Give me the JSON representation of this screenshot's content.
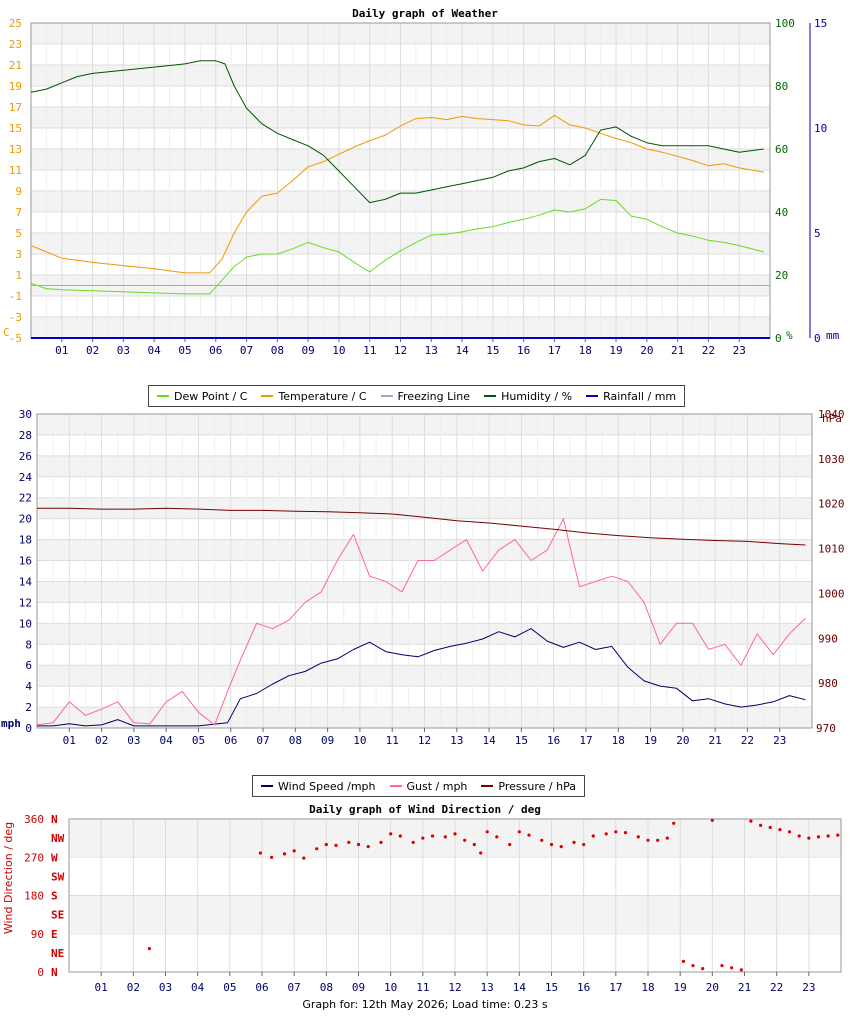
{
  "footer": "Graph for: 12th May 2026; Load time: 0.23 s",
  "legend_weather": [
    {
      "label": "Dew Point / C",
      "color": "#66dd22"
    },
    {
      "label": "Temperature / C",
      "color": "#ee9900"
    },
    {
      "label": "Freezing Line",
      "color": "#99aacc"
    },
    {
      "label": "Humidity / %",
      "color": "#005500"
    },
    {
      "label": "Rainfall / mm",
      "color": "#0000cc"
    }
  ],
  "legend_wind": [
    {
      "label": "Wind Speed /mph",
      "color": "#000066"
    },
    {
      "label": "Gust / mph",
      "color": "#ff6699"
    },
    {
      "label": "Pressure / hPa",
      "color": "#770000"
    }
  ],
  "chart_data": [
    {
      "type": "line",
      "title": "Daily graph of Weather",
      "x_ticks": [
        "01",
        "02",
        "03",
        "04",
        "05",
        "06",
        "07",
        "08",
        "09",
        "10",
        "11",
        "12",
        "13",
        "14",
        "15",
        "16",
        "17",
        "18",
        "19",
        "20",
        "21",
        "22",
        "23"
      ],
      "xlim": [
        0,
        24
      ],
      "grid": true,
      "legend_position": "bottom",
      "y_left": {
        "unit": "C",
        "ylim": [
          -5,
          25
        ],
        "ticks": [
          "-5",
          "-3",
          "-1",
          "1",
          "3",
          "5",
          "7",
          "9",
          "11",
          "13",
          "15",
          "17",
          "19",
          "21",
          "23",
          "25"
        ],
        "color": "#ee9900"
      },
      "y_right1": {
        "unit": "%",
        "ylim": [
          0,
          100
        ],
        "ticks": [
          "0",
          "20",
          "40",
          "60",
          "80",
          "100"
        ],
        "color": "#006600"
      },
      "y_right2": {
        "unit": "mm",
        "ylim": [
          0,
          15
        ],
        "ticks": [
          "0",
          "5",
          "10",
          "15"
        ],
        "color": "#0000aa"
      },
      "series": [
        {
          "name": "Temperature / C",
          "axis": "left",
          "color": "#ee9900",
          "x": [
            0,
            0.5,
            1,
            2,
            3,
            4,
            5,
            5.8,
            6.2,
            6.6,
            7,
            7.5,
            8,
            8.5,
            9,
            9.5,
            10,
            10.5,
            11,
            11.5,
            12,
            12.5,
            13,
            13.5,
            14,
            14.5,
            15,
            15.5,
            16,
            16.5,
            17,
            17.5,
            18,
            18.5,
            19,
            19.5,
            20,
            20.5,
            21,
            21.5,
            22,
            22.5,
            23,
            23.8
          ],
          "y": [
            3.8,
            3.2,
            2.6,
            2.2,
            1.9,
            1.6,
            1.2,
            1.2,
            2.5,
            5,
            7,
            8.5,
            8.8,
            10,
            11.3,
            11.8,
            12.5,
            13.2,
            13.8,
            14.3,
            15.2,
            15.9,
            16,
            15.8,
            16.1,
            15.9,
            15.8,
            15.7,
            15.3,
            15.2,
            16.2,
            15.3,
            15,
            14.5,
            14,
            13.6,
            13,
            12.7,
            12.3,
            11.9,
            11.4,
            11.6,
            11.2,
            10.8
          ]
        },
        {
          "name": "Dew Point / C",
          "axis": "left",
          "color": "#66dd22",
          "x": [
            0,
            0.5,
            1,
            2,
            3,
            4,
            5,
            5.8,
            6.2,
            6.6,
            7,
            7.5,
            8,
            8.5,
            9,
            9.5,
            10,
            10.5,
            11,
            11.5,
            12,
            12.5,
            13,
            13.5,
            14,
            14.5,
            15,
            15.5,
            16,
            16.5,
            17,
            17.5,
            18,
            18.5,
            19,
            19.5,
            20,
            20.5,
            21,
            21.5,
            22,
            22.5,
            23,
            23.8
          ],
          "y": [
            0.2,
            -0.3,
            -0.4,
            -0.5,
            -0.6,
            -0.7,
            -0.8,
            -0.8,
            0.5,
            1.8,
            2.7,
            3,
            3,
            3.5,
            4.1,
            3.6,
            3.2,
            2.2,
            1.3,
            2.4,
            3.3,
            4.1,
            4.8,
            4.9,
            5.1,
            5.4,
            5.6,
            6,
            6.3,
            6.7,
            7.2,
            7,
            7.3,
            8.2,
            8.1,
            6.6,
            6.3,
            5.6,
            5,
            4.7,
            4.3,
            4.1,
            3.8,
            3.2
          ]
        },
        {
          "name": "Humidity / %",
          "axis": "right1",
          "color": "#005500",
          "x": [
            0,
            0.5,
            1,
            1.5,
            2,
            3,
            4,
            5,
            5.5,
            6,
            6.3,
            6.6,
            7,
            7.5,
            8,
            8.5,
            9,
            9.5,
            10,
            10.5,
            11,
            11.5,
            12,
            12.5,
            13,
            13.5,
            14,
            14.5,
            15,
            15.5,
            16,
            16.5,
            17,
            17.5,
            18,
            18.5,
            19,
            19.5,
            20,
            20.5,
            21,
            21.5,
            22,
            22.5,
            23,
            23.8
          ],
          "y": [
            78,
            79,
            81,
            83,
            84,
            85,
            86,
            87,
            88,
            88,
            87,
            80,
            73,
            68,
            65,
            63,
            61,
            58,
            53,
            48,
            43,
            44,
            46,
            46,
            47,
            48,
            49,
            50,
            51,
            53,
            54,
            56,
            57,
            55,
            58,
            66,
            67,
            64,
            62,
            61,
            61,
            61,
            61,
            60,
            59,
            60
          ]
        },
        {
          "name": "Rainfall / mm",
          "axis": "right2",
          "color": "#0000cc",
          "x": [
            0,
            24
          ],
          "y": [
            0,
            0
          ]
        },
        {
          "name": "Freezing Line",
          "axis": "left",
          "color": "#99aacc",
          "x": [
            0,
            24
          ],
          "y": [
            0,
            0
          ]
        }
      ]
    },
    {
      "type": "line",
      "title": "",
      "x_ticks": [
        "01",
        "02",
        "03",
        "04",
        "05",
        "06",
        "07",
        "08",
        "09",
        "10",
        "11",
        "12",
        "13",
        "14",
        "15",
        "16",
        "17",
        "18",
        "19",
        "20",
        "21",
        "22",
        "23"
      ],
      "xlim": [
        0,
        24
      ],
      "grid": true,
      "legend_position": "bottom",
      "y_left": {
        "unit": "mph",
        "ylim": [
          0,
          30
        ],
        "ticks": [
          "0",
          "2",
          "4",
          "6",
          "8",
          "10",
          "12",
          "14",
          "16",
          "18",
          "20",
          "22",
          "24",
          "26",
          "28",
          "30"
        ],
        "color": "#000066"
      },
      "y_right": {
        "unit": "hPa",
        "ylim": [
          970,
          1040
        ],
        "ticks": [
          "970",
          "980",
          "990",
          "1000",
          "1010",
          "1020",
          "1030",
          "1040"
        ],
        "color": "#660000"
      },
      "series": [
        {
          "name": "Wind Speed /mph",
          "axis": "left",
          "color": "#000066",
          "x": [
            0,
            0.5,
            1,
            1.5,
            2,
            2.5,
            3,
            4,
            5,
            5.9,
            6.3,
            6.8,
            7.3,
            7.8,
            8.3,
            8.8,
            9.3,
            9.8,
            10.3,
            10.8,
            11.3,
            11.8,
            12.3,
            12.8,
            13.3,
            13.8,
            14.3,
            14.8,
            15.3,
            15.8,
            16.3,
            16.8,
            17.3,
            17.8,
            18.3,
            18.8,
            19.3,
            19.8,
            20.3,
            20.8,
            21.3,
            21.8,
            22.3,
            22.8,
            23.3,
            23.8
          ],
          "y": [
            0.2,
            0.2,
            0.4,
            0.2,
            0.3,
            0.8,
            0.2,
            0.2,
            0.2,
            0.5,
            2.8,
            3.3,
            4.2,
            5,
            5.4,
            6.2,
            6.6,
            7.5,
            8.2,
            7.3,
            7,
            6.8,
            7.4,
            7.8,
            8.1,
            8.5,
            9.2,
            8.7,
            9.5,
            8.3,
            7.7,
            8.2,
            7.5,
            7.8,
            5.8,
            4.5,
            4,
            3.8,
            2.6,
            2.8,
            2.3,
            2,
            2.2,
            2.5,
            3.1,
            2.7
          ]
        },
        {
          "name": "Gust / mph",
          "axis": "left",
          "color": "#ff6699",
          "x": [
            0,
            0.5,
            1,
            1.5,
            2,
            2.5,
            3,
            3.5,
            4,
            4.5,
            5,
            5.5,
            5.9,
            6.3,
            6.8,
            7.3,
            7.8,
            8.3,
            8.8,
            9.3,
            9.8,
            10.3,
            10.8,
            11.3,
            11.8,
            12.3,
            12.8,
            13.3,
            13.8,
            14.3,
            14.8,
            15.3,
            15.8,
            16.3,
            16.8,
            17.3,
            17.8,
            18.3,
            18.8,
            19.3,
            19.8,
            20.3,
            20.8,
            21.3,
            21.8,
            22.3,
            22.8,
            23.3,
            23.8
          ],
          "y": [
            0.3,
            0.5,
            2.5,
            1.2,
            1.8,
            2.5,
            0.5,
            0.4,
            2.5,
            3.5,
            1.5,
            0.3,
            3.5,
            6.5,
            10,
            9.5,
            10.3,
            12,
            13,
            16,
            18.5,
            14.5,
            14,
            13,
            16,
            16,
            17,
            18,
            15,
            17,
            18,
            16,
            17,
            20,
            13.5,
            14,
            14.5,
            14,
            12,
            8,
            10,
            10,
            7.5,
            8,
            6,
            9,
            7,
            9,
            10.5
          ]
        },
        {
          "name": "Pressure / hPa",
          "axis": "right",
          "color": "#770000",
          "x": [
            0,
            1,
            2,
            3,
            4,
            5,
            6,
            7,
            8,
            9,
            10,
            11,
            12,
            13,
            14,
            15,
            16,
            17,
            18,
            19,
            20,
            21,
            22,
            23,
            23.8
          ],
          "y": [
            1019,
            1019,
            1018.8,
            1018.8,
            1019,
            1018.8,
            1018.5,
            1018.5,
            1018.3,
            1018.2,
            1018,
            1017.7,
            1017,
            1016.2,
            1015.7,
            1015,
            1014.3,
            1013.5,
            1012.9,
            1012.4,
            1012.1,
            1011.8,
            1011.6,
            1011.1,
            1010.8
          ]
        }
      ]
    },
    {
      "type": "scatter",
      "title": "Daily graph of Wind Direction / deg",
      "ylabel": "Wind Direction / deg",
      "x_ticks": [
        "01",
        "02",
        "03",
        "04",
        "05",
        "06",
        "07",
        "08",
        "09",
        "10",
        "11",
        "12",
        "13",
        "14",
        "15",
        "16",
        "17",
        "18",
        "19",
        "20",
        "21",
        "22",
        "23"
      ],
      "xlim": [
        0,
        24
      ],
      "ylim": [
        0,
        360
      ],
      "y_ticks": [
        "0",
        "90",
        "180",
        "270",
        "360"
      ],
      "compass_labels": [
        "N",
        "NE",
        "E",
        "SE",
        "S",
        "SW",
        "W",
        "NW",
        "N"
      ],
      "grid": true,
      "series": [
        {
          "name": "",
          "color": "#dd0000",
          "x": [
            2.5,
            5.95,
            6.3,
            6.7,
            7,
            7.3,
            7.7,
            8,
            8.3,
            8.7,
            9,
            9.3,
            9.7,
            10,
            10.3,
            10.7,
            11,
            11.3,
            11.7,
            12,
            12.3,
            12.6,
            12.8,
            13,
            13.3,
            13.7,
            14,
            14.3,
            14.7,
            15,
            15.3,
            15.7,
            16,
            16.3,
            16.7,
            17,
            17.3,
            17.7,
            18,
            18.3,
            18.6,
            18.8,
            19.1,
            19.4,
            19.7,
            20,
            20.3,
            20.6,
            20.9,
            21.2,
            21.5,
            21.8,
            22.1,
            22.4,
            22.7,
            23,
            23.3,
            23.6,
            23.9
          ],
          "y": [
            55,
            280,
            270,
            278,
            285,
            268,
            290,
            300,
            298,
            305,
            300,
            295,
            305,
            325,
            320,
            305,
            315,
            320,
            318,
            325,
            310,
            300,
            280,
            330,
            318,
            300,
            330,
            322,
            310,
            300,
            295,
            305,
            300,
            320,
            325,
            330,
            328,
            318,
            310,
            310,
            315,
            350,
            25,
            15,
            8,
            357,
            15,
            10,
            5,
            355,
            345,
            340,
            335,
            330,
            320,
            315,
            318,
            320,
            322
          ]
        }
      ]
    }
  ]
}
